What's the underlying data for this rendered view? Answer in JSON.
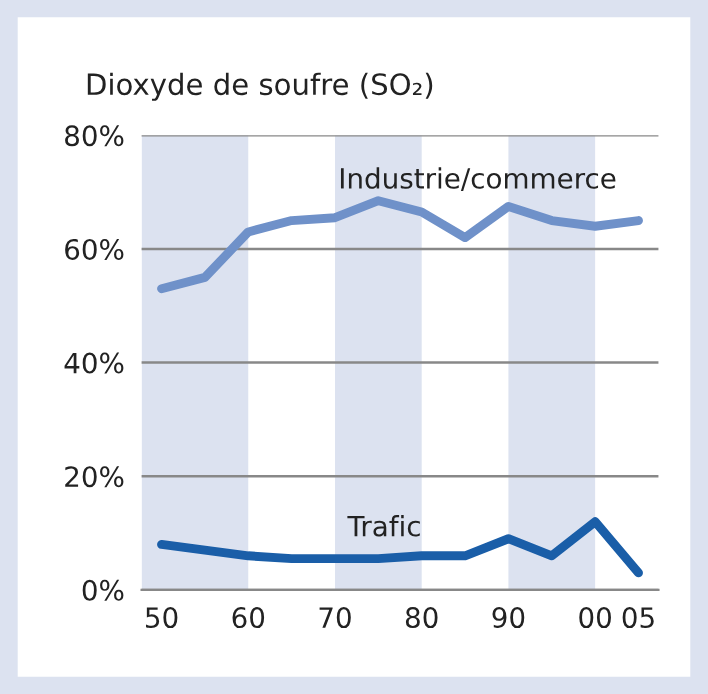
{
  "chart_data": {
    "type": "line",
    "title": "Dioxyde de soufre (SO₂)",
    "x": [
      1950,
      1955,
      1960,
      1965,
      1970,
      1975,
      1980,
      1985,
      1990,
      1995,
      2000,
      2005
    ],
    "series": [
      {
        "name": "Industrie/commerce",
        "color": "#6f91c9",
        "values": [
          53,
          55,
          63,
          65,
          65.5,
          68.5,
          66.5,
          62,
          67.5,
          65,
          64,
          65
        ]
      },
      {
        "name": "Trafic",
        "color": "#1a5ea8",
        "values": [
          8,
          7,
          6,
          5.5,
          5.5,
          5.5,
          6,
          6,
          9,
          6,
          12,
          3
        ]
      }
    ],
    "xlim": [
      1947.7,
      2007.3
    ],
    "xticks": [
      {
        "value": 1950,
        "label": "50"
      },
      {
        "value": 1960,
        "label": "60"
      },
      {
        "value": 1970,
        "label": "70"
      },
      {
        "value": 1980,
        "label": "80"
      },
      {
        "value": 1990,
        "label": "90"
      },
      {
        "value": 2000,
        "label": "00"
      },
      {
        "value": 2005,
        "label": "05"
      }
    ],
    "ylim": [
      0,
      80
    ],
    "yticks": [
      {
        "value": 0,
        "label": "0%"
      },
      {
        "value": 20,
        "label": "20%"
      },
      {
        "value": 40,
        "label": "40%"
      },
      {
        "value": 60,
        "label": "60%"
      },
      {
        "value": 80,
        "label": "80%"
      }
    ],
    "bands": [
      {
        "axis": "x",
        "from": 1947.7,
        "to": 1960,
        "color": "#dce2f0"
      },
      {
        "axis": "x",
        "from": 1970,
        "to": 1980,
        "color": "#dce2f0"
      },
      {
        "axis": "x",
        "from": 1990,
        "to": 2000,
        "color": "#dce2f0"
      }
    ],
    "grid": "y",
    "legend": false,
    "marker": "none",
    "line_style": "solid"
  }
}
